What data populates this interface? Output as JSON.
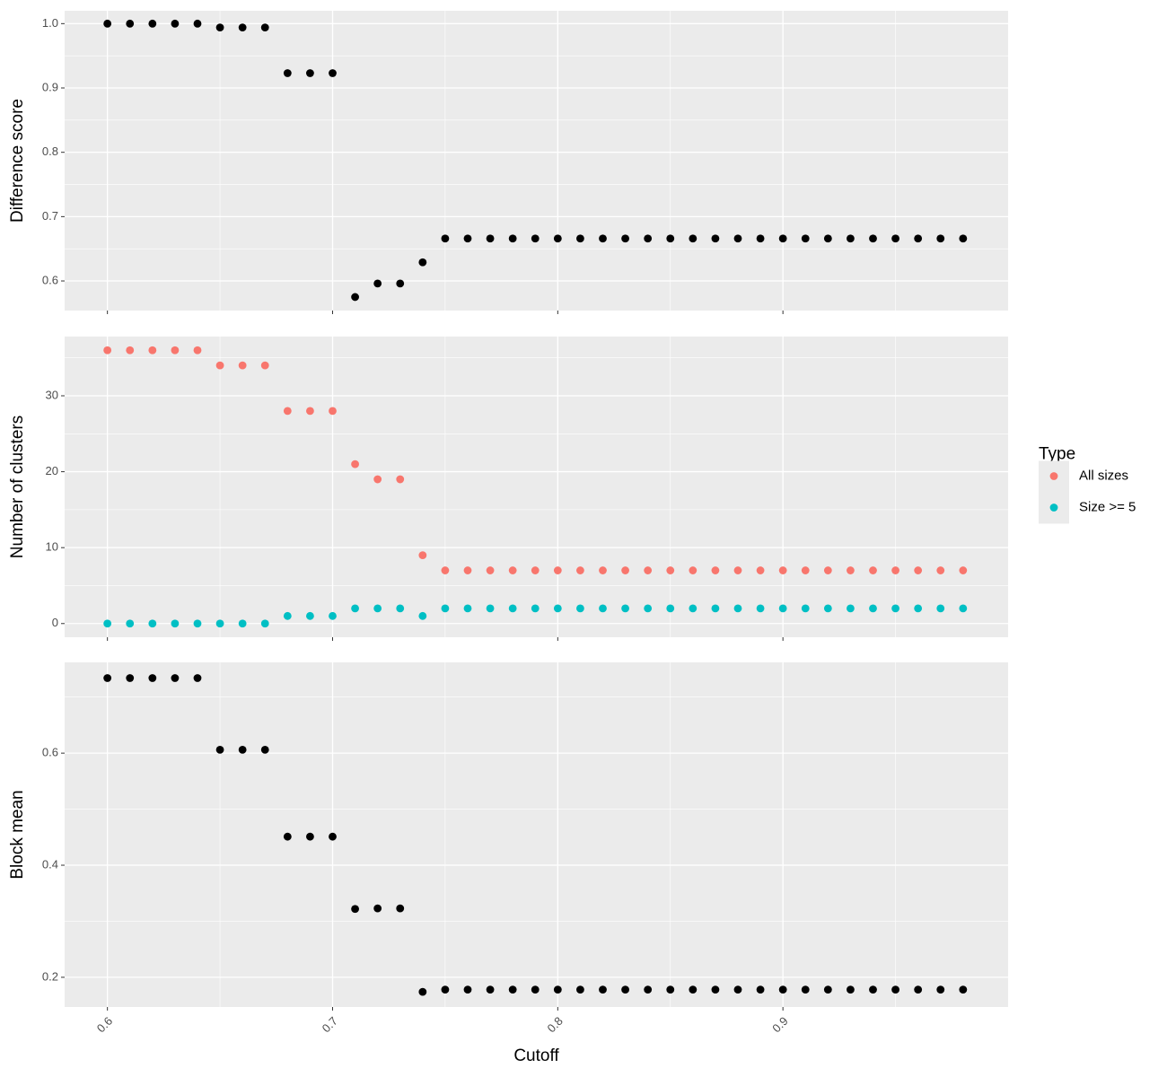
{
  "chart_data": [
    {
      "type": "scatter",
      "y_label": "Difference score",
      "x": [
        0.6,
        0.61,
        0.62,
        0.63,
        0.64,
        0.65,
        0.66,
        0.67,
        0.68,
        0.69,
        0.7,
        0.71,
        0.72,
        0.73,
        0.74,
        0.75,
        0.76,
        0.77,
        0.78,
        0.79,
        0.8,
        0.81,
        0.82,
        0.83,
        0.84,
        0.85,
        0.86,
        0.87,
        0.88,
        0.89,
        0.9,
        0.91,
        0.92,
        0.93,
        0.94,
        0.95,
        0.96,
        0.97,
        0.98
      ],
      "series": [
        {
          "color": "#000000",
          "values": [
            1.0,
            1.0,
            1.0,
            1.0,
            1.0,
            0.994,
            0.994,
            0.994,
            0.923,
            0.923,
            0.923,
            0.575,
            0.596,
            0.596,
            0.629,
            0.666,
            0.666,
            0.666,
            0.666,
            0.666,
            0.666,
            0.666,
            0.666,
            0.666,
            0.666,
            0.666,
            0.666,
            0.666,
            0.666,
            0.666,
            0.666,
            0.666,
            0.666,
            0.666,
            0.666,
            0.666,
            0.666,
            0.666,
            0.666
          ]
        }
      ],
      "xlim": [
        0.581,
        1.0
      ],
      "xticks": [
        0.6,
        0.7,
        0.8,
        0.9
      ],
      "ylim": [
        0.554,
        1.02
      ],
      "yticks": [
        0.6,
        0.7,
        0.8,
        0.9,
        {
          "value": 1.0,
          "label": "1.0"
        }
      ],
      "grid": true
    },
    {
      "type": "scatter",
      "y_label": "Number of clusters",
      "legend_title": "Type",
      "x": [
        0.6,
        0.61,
        0.62,
        0.63,
        0.64,
        0.65,
        0.66,
        0.67,
        0.68,
        0.69,
        0.7,
        0.71,
        0.72,
        0.73,
        0.74,
        0.75,
        0.76,
        0.77,
        0.78,
        0.79,
        0.8,
        0.81,
        0.82,
        0.83,
        0.84,
        0.85,
        0.86,
        0.87,
        0.88,
        0.89,
        0.9,
        0.91,
        0.92,
        0.93,
        0.94,
        0.95,
        0.96,
        0.97,
        0.98
      ],
      "series": [
        {
          "name": "All sizes",
          "color": "#F8766D",
          "values": [
            36,
            36,
            36,
            36,
            36,
            34,
            34,
            34,
            28,
            28,
            28,
            21,
            19,
            19,
            9,
            7,
            7,
            7,
            7,
            7,
            7,
            7,
            7,
            7,
            7,
            7,
            7,
            7,
            7,
            7,
            7,
            7,
            7,
            7,
            7,
            7,
            7,
            7,
            7
          ]
        },
        {
          "name": "Size >= 5",
          "color": "#00BFC4",
          "values": [
            0,
            0,
            0,
            0,
            0,
            0,
            0,
            0,
            1,
            1,
            1,
            2,
            2,
            2,
            1,
            2,
            2,
            2,
            2,
            2,
            2,
            2,
            2,
            2,
            2,
            2,
            2,
            2,
            2,
            2,
            2,
            2,
            2,
            2,
            2,
            2,
            2,
            2,
            2
          ]
        }
      ],
      "xlim": [
        0.581,
        1.0
      ],
      "xticks": [
        0.6,
        0.7,
        0.8,
        0.9
      ],
      "ylim": [
        -1.8,
        37.8
      ],
      "yticks": [
        0,
        10,
        20,
        30
      ],
      "grid": true
    },
    {
      "type": "scatter",
      "y_label": "Block mean",
      "x_label": "Cutoff",
      "x": [
        0.6,
        0.61,
        0.62,
        0.63,
        0.64,
        0.65,
        0.66,
        0.67,
        0.68,
        0.69,
        0.7,
        0.71,
        0.72,
        0.73,
        0.74,
        0.75,
        0.76,
        0.77,
        0.78,
        0.79,
        0.8,
        0.81,
        0.82,
        0.83,
        0.84,
        0.85,
        0.86,
        0.87,
        0.88,
        0.89,
        0.9,
        0.91,
        0.92,
        0.93,
        0.94,
        0.95,
        0.96,
        0.97,
        0.98
      ],
      "series": [
        {
          "color": "#000000",
          "values": [
            0.734,
            0.734,
            0.734,
            0.734,
            0.734,
            0.606,
            0.606,
            0.606,
            0.451,
            0.451,
            0.451,
            0.322,
            0.323,
            0.323,
            0.174,
            0.178,
            0.178,
            0.178,
            0.178,
            0.178,
            0.178,
            0.178,
            0.178,
            0.178,
            0.178,
            0.178,
            0.178,
            0.178,
            0.178,
            0.178,
            0.178,
            0.178,
            0.178,
            0.178,
            0.178,
            0.178,
            0.178,
            0.178,
            0.178
          ]
        }
      ],
      "xlim": [
        0.581,
        1.0
      ],
      "xticks": [
        0.6,
        0.7,
        0.8,
        0.9
      ],
      "ylim": [
        0.147,
        0.762
      ],
      "yticks": [
        0.2,
        0.4,
        0.6
      ],
      "grid": true,
      "show_x_labels": true
    }
  ]
}
